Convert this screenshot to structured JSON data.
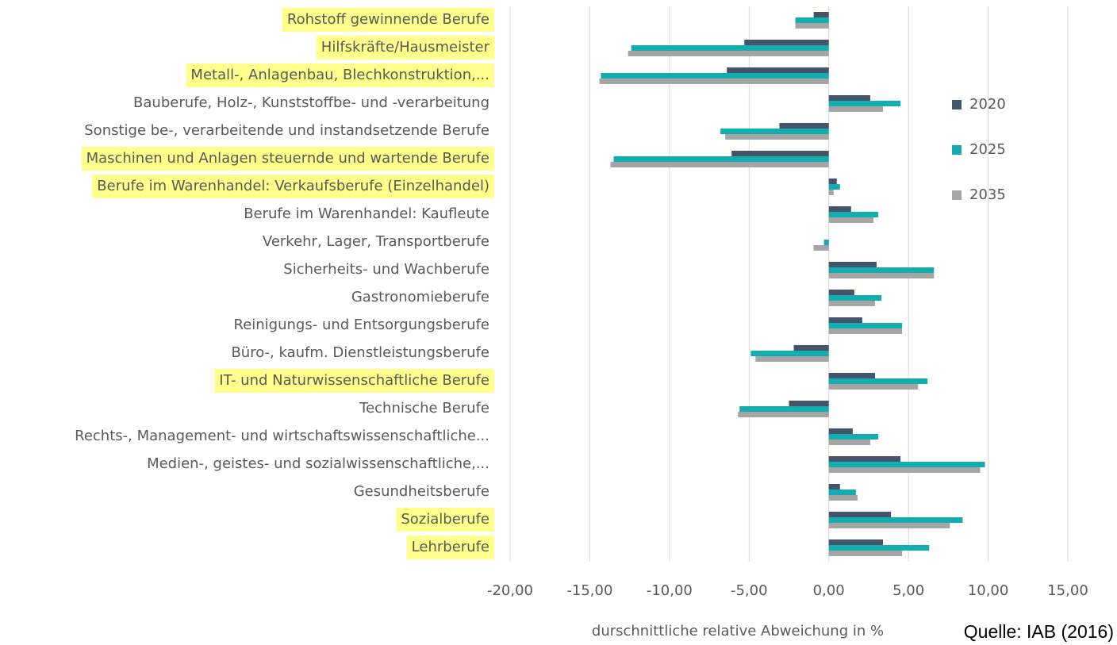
{
  "chart_data": {
    "type": "barh",
    "categories": [
      "Rohstoff gewinnende Berufe",
      "Hilfskräfte/Hausmeister",
      "Metall-, Anlagenbau, Blechkonstruktion,...",
      "Bauberufe, Holz-, Kunststoffbe- und -verarbeitung",
      "Sonstige be-, verarbeitende und instandsetzende Berufe",
      "Maschinen und Anlagen steuernde und wartende Berufe",
      "Berufe im Warenhandel: Verkaufsberufe (Einzelhandel)",
      "Berufe im Warenhandel: Kaufleute",
      "Verkehr, Lager, Transportberufe",
      "Sicherheits- und Wachberufe",
      "Gastronomieberufe",
      "Reinigungs- und Entsorgungsberufe",
      "Büro-, kaufm. Dienstleistungsberufe",
      "IT- und Naturwissenschaftliche Berufe",
      "Technische Berufe",
      "Rechts-, Management- und wirtschaftswissenschaftliche...",
      "Medien-, geistes- und sozialwissenschaftliche,...",
      "Gesundheitsberufe",
      "Sozialberufe",
      "Lehrberufe"
    ],
    "series": [
      {
        "name": "2020",
        "color": "#44546a",
        "values": [
          -0.95,
          -5.3,
          -6.4,
          2.6,
          -3.1,
          -6.1,
          0.5,
          1.4,
          0.0,
          3.0,
          1.6,
          2.1,
          -2.2,
          2.9,
          -2.5,
          1.5,
          4.5,
          0.7,
          3.9,
          3.4
        ]
      },
      {
        "name": "2025",
        "color": "#13adb0",
        "values": [
          -2.1,
          -12.4,
          -14.3,
          4.5,
          -6.8,
          -13.5,
          0.7,
          3.1,
          -0.3,
          6.6,
          3.3,
          4.6,
          -4.9,
          6.2,
          -5.6,
          3.1,
          9.8,
          1.7,
          8.4,
          6.3
        ]
      },
      {
        "name": "2035",
        "color": "#a5a5a5",
        "values": [
          -2.1,
          -12.6,
          -14.4,
          3.4,
          -6.5,
          -13.7,
          0.3,
          2.8,
          -0.95,
          6.6,
          2.9,
          4.6,
          -4.6,
          5.6,
          -5.7,
          2.6,
          9.5,
          1.8,
          7.6,
          4.6
        ]
      }
    ],
    "xlim": [
      -20,
      15
    ],
    "xticks": [
      {
        "value": -20,
        "label": "-20,00"
      },
      {
        "value": -15,
        "label": "-15,00"
      },
      {
        "value": -10,
        "label": "-10,00"
      },
      {
        "value": -5,
        "label": "-5,00"
      },
      {
        "value": 0,
        "label": "0,00"
      },
      {
        "value": 5,
        "label": "5,00"
      },
      {
        "value": 10,
        "label": "10,00"
      },
      {
        "value": 15,
        "label": "15,00"
      }
    ],
    "xlabel": "durschnittliche relative Abweichung in %",
    "source": "Quelle: IAB (2016)",
    "grid": true,
    "legend": "right",
    "highlight": {
      "color": "#ffff8c",
      "categories": [
        0,
        1,
        2,
        5,
        6,
        13,
        18,
        19
      ]
    }
  }
}
